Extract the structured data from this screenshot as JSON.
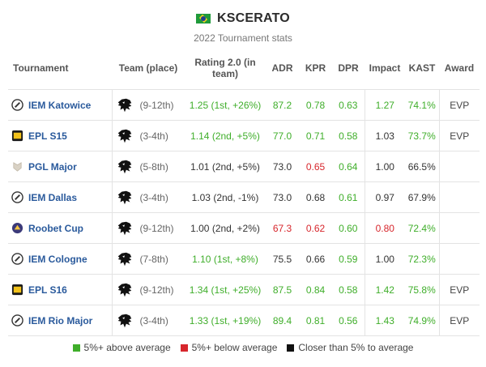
{
  "header": {
    "flag_icon": "brazil-flag-icon",
    "player_name": "KSCERATO",
    "subtitle": "2022 Tournament stats"
  },
  "columns": {
    "tournament": "Tournament",
    "team": "Team (place)",
    "rating": "Rating 2.0 (in team)",
    "adr": "ADR",
    "kpr": "KPR",
    "dpr": "DPR",
    "impact": "Impact",
    "kast": "KAST",
    "award": "Award"
  },
  "colors": {
    "good": "#3fae2a",
    "bad": "#d7262c",
    "neutral": "#333333",
    "link": "#2a5a9c"
  },
  "rows": [
    {
      "tournament": "IEM Katowice",
      "logo": "iem-logo-icon",
      "team_icon": "furia-logo-icon",
      "place": "(9-12th)",
      "rating": "1.25",
      "rating_rank": "(1st, +26%)",
      "rating_color": "good",
      "adr": "87.2",
      "adr_color": "good",
      "kpr": "0.78",
      "kpr_color": "good",
      "dpr": "0.63",
      "dpr_color": "good",
      "impact": "1.27",
      "impact_color": "good",
      "kast": "74.1%",
      "kast_color": "good",
      "award": "EVP"
    },
    {
      "tournament": "EPL S15",
      "logo": "esl-pro-league-logo-icon",
      "team_icon": "furia-logo-icon",
      "place": "(3-4th)",
      "rating": "1.14",
      "rating_rank": "(2nd, +5%)",
      "rating_color": "good",
      "adr": "77.0",
      "adr_color": "good",
      "kpr": "0.71",
      "kpr_color": "good",
      "dpr": "0.58",
      "dpr_color": "good",
      "impact": "1.03",
      "impact_color": "neutral",
      "kast": "73.7%",
      "kast_color": "good",
      "award": "EVP"
    },
    {
      "tournament": "PGL Major",
      "logo": "pgl-major-logo-icon",
      "team_icon": "furia-logo-icon",
      "place": "(5-8th)",
      "rating": "1.01",
      "rating_rank": "(2nd, +5%)",
      "rating_color": "neutral",
      "adr": "73.0",
      "adr_color": "neutral",
      "kpr": "0.65",
      "kpr_color": "bad",
      "dpr": "0.64",
      "dpr_color": "good",
      "impact": "1.00",
      "impact_color": "neutral",
      "kast": "66.5%",
      "kast_color": "neutral",
      "award": ""
    },
    {
      "tournament": "IEM Dallas",
      "logo": "iem-logo-icon",
      "team_icon": "furia-logo-icon",
      "place": "(3-4th)",
      "rating": "1.03",
      "rating_rank": "(2nd, -1%)",
      "rating_color": "neutral",
      "adr": "73.0",
      "adr_color": "neutral",
      "kpr": "0.68",
      "kpr_color": "neutral",
      "dpr": "0.61",
      "dpr_color": "good",
      "impact": "0.97",
      "impact_color": "neutral",
      "kast": "67.9%",
      "kast_color": "neutral",
      "award": ""
    },
    {
      "tournament": "Roobet Cup",
      "logo": "roobet-cup-logo-icon",
      "team_icon": "furia-logo-icon",
      "place": "(9-12th)",
      "rating": "1.00",
      "rating_rank": "(2nd, +2%)",
      "rating_color": "neutral",
      "adr": "67.3",
      "adr_color": "bad",
      "kpr": "0.62",
      "kpr_color": "bad",
      "dpr": "0.60",
      "dpr_color": "good",
      "impact": "0.80",
      "impact_color": "bad",
      "kast": "72.4%",
      "kast_color": "good",
      "award": ""
    },
    {
      "tournament": "IEM Cologne",
      "logo": "iem-logo-icon",
      "team_icon": "furia-logo-icon",
      "place": "(7-8th)",
      "rating": "1.10",
      "rating_rank": "(1st, +8%)",
      "rating_color": "good",
      "adr": "75.5",
      "adr_color": "neutral",
      "kpr": "0.66",
      "kpr_color": "neutral",
      "dpr": "0.59",
      "dpr_color": "good",
      "impact": "1.00",
      "impact_color": "neutral",
      "kast": "72.3%",
      "kast_color": "good",
      "award": ""
    },
    {
      "tournament": "EPL S16",
      "logo": "esl-pro-league-logo-icon",
      "team_icon": "furia-logo-icon",
      "place": "(9-12th)",
      "rating": "1.34",
      "rating_rank": "(1st, +25%)",
      "rating_color": "good",
      "adr": "87.5",
      "adr_color": "good",
      "kpr": "0.84",
      "kpr_color": "good",
      "dpr": "0.58",
      "dpr_color": "good",
      "impact": "1.42",
      "impact_color": "good",
      "kast": "75.8%",
      "kast_color": "good",
      "award": "EVP"
    },
    {
      "tournament": "IEM Rio Major",
      "logo": "iem-logo-icon",
      "team_icon": "furia-logo-icon",
      "place": "(3-4th)",
      "rating": "1.33",
      "rating_rank": "(1st, +19%)",
      "rating_color": "good",
      "adr": "89.4",
      "adr_color": "good",
      "kpr": "0.81",
      "kpr_color": "good",
      "dpr": "0.56",
      "dpr_color": "good",
      "impact": "1.43",
      "impact_color": "good",
      "kast": "74.9%",
      "kast_color": "good",
      "award": "EVP"
    }
  ],
  "legend": [
    {
      "label": "5%+ above average",
      "color": "#3fae2a"
    },
    {
      "label": "5%+ below average",
      "color": "#d7262c"
    },
    {
      "label": "Closer than 5% to average",
      "color": "#111111"
    }
  ]
}
